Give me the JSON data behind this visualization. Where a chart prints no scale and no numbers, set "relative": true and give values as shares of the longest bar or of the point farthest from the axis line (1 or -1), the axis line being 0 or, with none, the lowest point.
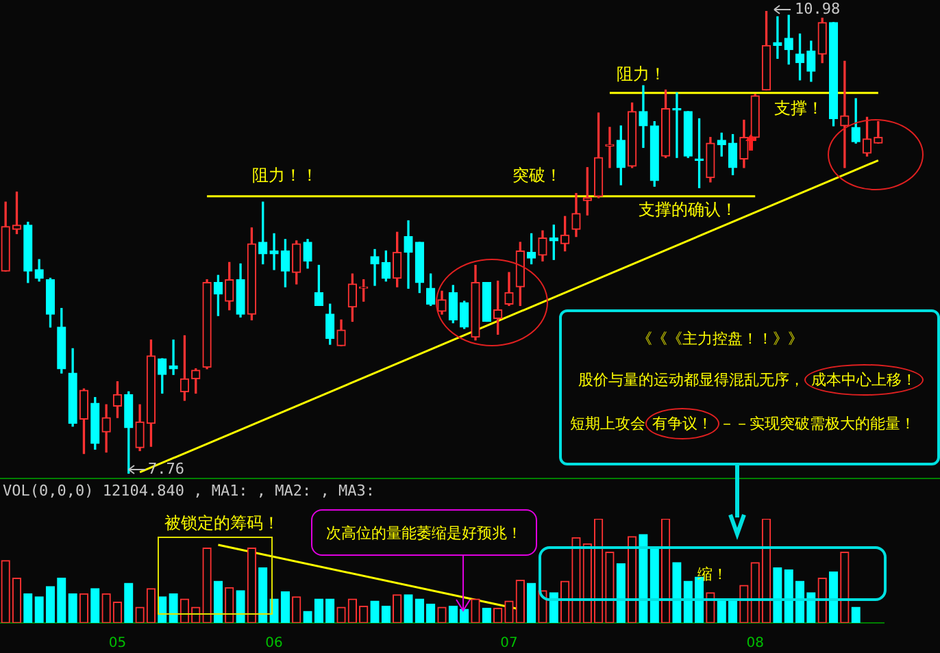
{
  "chart_data": [
    {
      "type": "candlestick",
      "tick_labels": false,
      "categories": [
        null,
        null,
        null,
        null,
        null,
        null,
        null,
        null,
        null,
        null,
        "05",
        null,
        null,
        null,
        null,
        null,
        null,
        null,
        null,
        null,
        null,
        null,
        null,
        null,
        "06",
        null,
        null,
        null,
        null,
        null,
        null,
        null,
        null,
        null,
        null,
        null,
        null,
        null,
        null,
        null,
        null,
        null,
        null,
        null,
        null,
        "07",
        null,
        null,
        null,
        null,
        null,
        null,
        null,
        null,
        null,
        null,
        null,
        null,
        null,
        null,
        null,
        null,
        null,
        null,
        null,
        null,
        null,
        "08",
        null,
        null,
        null,
        null,
        null,
        null,
        null,
        null,
        null,
        null,
        null
      ],
      "ohlc": [
        [
          9.17,
          9.65,
          9.17,
          9.48
        ],
        [
          9.46,
          9.72,
          9.43,
          9.49
        ],
        [
          9.49,
          9.51,
          9.09,
          9.17
        ],
        [
          9.18,
          9.25,
          9.1,
          9.12
        ],
        [
          9.11,
          9.12,
          8.78,
          8.87
        ],
        [
          8.78,
          8.91,
          8.46,
          8.49
        ],
        [
          8.46,
          8.63,
          8.09,
          8.11
        ],
        [
          8.14,
          8.35,
          7.9,
          8.34
        ],
        [
          8.25,
          8.29,
          7.93,
          7.97
        ],
        [
          8.05,
          8.24,
          7.91,
          8.15
        ],
        [
          8.23,
          8.4,
          8.15,
          8.31
        ],
        [
          8.31,
          8.33,
          7.76,
          8.08
        ],
        [
          7.94,
          8.24,
          7.92,
          8.12
        ],
        [
          8.11,
          8.69,
          7.95,
          8.58
        ],
        [
          8.56,
          8.56,
          8.32,
          8.45
        ],
        [
          8.51,
          8.69,
          8.45,
          8.49
        ],
        [
          8.33,
          8.72,
          8.27,
          8.42
        ],
        [
          8.42,
          8.49,
          8.32,
          8.48
        ],
        [
          8.5,
          9.11,
          8.49,
          9.09
        ],
        [
          9.09,
          9.14,
          8.86,
          9.01
        ],
        [
          8.96,
          9.23,
          8.9,
          9.11
        ],
        [
          9.11,
          9.22,
          8.85,
          8.87
        ],
        [
          8.87,
          9.47,
          8.83,
          9.36
        ],
        [
          9.37,
          9.65,
          9.22,
          9.29
        ],
        [
          9.31,
          9.43,
          9.18,
          9.29
        ],
        [
          9.31,
          9.39,
          9.06,
          9.17
        ],
        [
          9.16,
          9.38,
          9.08,
          9.36
        ],
        [
          9.37,
          9.39,
          9.19,
          9.24
        ],
        [
          9.02,
          9.21,
          8.93,
          8.93
        ],
        [
          8.87,
          8.94,
          8.66,
          8.7
        ],
        [
          8.65,
          8.83,
          8.65,
          8.76
        ],
        [
          8.92,
          9.15,
          8.82,
          9.08
        ],
        [
          9.05,
          9.11,
          8.96,
          9.06
        ],
        [
          9.27,
          9.32,
          9.07,
          9.22
        ],
        [
          9.23,
          9.31,
          9.1,
          9.12
        ],
        [
          9.12,
          9.44,
          9.06,
          9.3
        ],
        [
          9.41,
          9.52,
          9.05,
          9.3
        ],
        [
          9.37,
          9.37,
          9.02,
          9.09
        ],
        [
          9.05,
          9.15,
          8.93,
          8.94
        ],
        [
          8.89,
          9.03,
          8.87,
          8.97
        ],
        [
          9.02,
          9.07,
          8.81,
          8.83
        ],
        [
          8.95,
          8.96,
          8.77,
          8.78
        ],
        [
          8.71,
          9.21,
          8.69,
          9.09
        ],
        [
          9.09,
          9.09,
          8.82,
          8.82
        ],
        [
          8.84,
          9.1,
          8.73,
          8.9
        ],
        [
          8.94,
          9.16,
          8.93,
          9.02
        ],
        [
          9.06,
          9.37,
          8.93,
          9.31
        ],
        [
          9.3,
          9.43,
          9.22,
          9.26
        ],
        [
          9.28,
          9.45,
          9.24,
          9.4
        ],
        [
          9.4,
          9.49,
          9.25,
          9.38
        ],
        [
          9.36,
          9.55,
          9.31,
          9.42
        ],
        [
          9.46,
          9.71,
          9.41,
          9.57
        ],
        [
          9.66,
          9.89,
          9.56,
          9.68
        ],
        [
          9.69,
          10.27,
          9.68,
          9.96
        ],
        [
          10.04,
          10.17,
          9.89,
          10.05
        ],
        [
          10.08,
          10.18,
          9.77,
          9.89
        ],
        [
          9.9,
          10.34,
          9.89,
          10.28
        ],
        [
          10.28,
          10.46,
          10.03,
          10.18
        ],
        [
          10.18,
          10.21,
          9.76,
          9.8
        ],
        [
          9.97,
          10.43,
          9.96,
          10.3
        ],
        [
          10.3,
          10.41,
          9.96,
          10.29
        ],
        [
          10.28,
          10.28,
          9.96,
          9.97
        ],
        [
          9.95,
          10.23,
          9.75,
          9.94
        ],
        [
          9.82,
          10.1,
          9.79,
          10.06
        ],
        [
          10.08,
          10.13,
          9.97,
          10.05
        ],
        [
          10.06,
          10.12,
          9.84,
          9.89
        ],
        [
          9.95,
          10.22,
          9.89,
          10.1
        ],
        [
          10.1,
          10.4,
          10.08,
          10.39
        ],
        [
          10.43,
          10.98,
          10.43,
          10.74
        ],
        [
          10.76,
          10.94,
          10.65,
          10.74
        ],
        [
          10.79,
          10.95,
          10.61,
          10.71
        ],
        [
          10.68,
          10.82,
          10.5,
          10.62
        ],
        [
          10.7,
          10.77,
          10.49,
          10.56
        ],
        [
          10.68,
          10.93,
          10.62,
          10.9
        ],
        [
          10.9,
          10.9,
          10.18,
          10.23
        ],
        [
          10.18,
          10.63,
          9.89,
          10.25
        ],
        [
          10.17,
          10.37,
          10.06,
          10.07
        ],
        [
          9.99,
          10.24,
          9.97,
          10.09
        ],
        [
          10.06,
          10.21,
          10.06,
          10.1
        ]
      ],
      "series": [
        {
          "type": "line",
          "color": "#ffff00",
          "values": [
            null,
            null,
            null,
            null,
            null,
            null,
            null,
            null,
            null,
            null,
            null,
            null,
            7.77,
            null,
            null,
            null,
            null,
            null,
            null,
            null,
            null,
            null,
            null,
            null,
            null,
            null,
            null,
            null,
            null,
            null,
            null,
            null,
            null,
            null,
            null,
            null,
            null,
            null,
            null,
            null,
            null,
            null,
            null,
            null,
            null,
            null,
            null,
            null,
            null,
            null,
            null,
            null,
            null,
            null,
            null,
            null,
            null,
            null,
            null,
            null,
            null,
            null,
            null,
            null,
            null,
            null,
            null,
            null,
            null,
            null,
            null,
            null,
            null,
            null,
            null,
            null,
            null,
            null,
            9.94
          ]
        },
        {
          "type": "line",
          "color": "#ffff00",
          "values": [
            null,
            null,
            null,
            null,
            null,
            null,
            null,
            null,
            null,
            null,
            null,
            null,
            null,
            null,
            null,
            null,
            null,
            null,
            9.69,
            null,
            null,
            null,
            null,
            null,
            null,
            null,
            null,
            null,
            null,
            null,
            null,
            null,
            null,
            null,
            null,
            null,
            null,
            null,
            null,
            null,
            null,
            null,
            null,
            null,
            null,
            null,
            null,
            null,
            null,
            null,
            null,
            null,
            null,
            null,
            null,
            null,
            null,
            null,
            null,
            null,
            null,
            null,
            null,
            null,
            null,
            null,
            null,
            9.69,
            null,
            null,
            null,
            null,
            null,
            null,
            null,
            null,
            null,
            null,
            null
          ]
        },
        {
          "type": "line",
          "color": "#ffff00",
          "values": [
            null,
            null,
            null,
            null,
            null,
            null,
            null,
            null,
            null,
            null,
            null,
            null,
            null,
            null,
            null,
            null,
            null,
            null,
            null,
            null,
            null,
            null,
            null,
            null,
            null,
            null,
            null,
            null,
            null,
            null,
            null,
            null,
            null,
            null,
            null,
            null,
            null,
            null,
            null,
            null,
            null,
            null,
            null,
            null,
            null,
            null,
            null,
            null,
            null,
            null,
            null,
            null,
            null,
            null,
            10.41,
            null,
            null,
            null,
            null,
            null,
            null,
            null,
            null,
            null,
            null,
            null,
            null,
            null,
            null,
            null,
            null,
            null,
            null,
            null,
            null,
            null,
            null,
            null,
            10.41
          ]
        }
      ],
      "annotations": [
        "10.98",
        "7.76",
        "阻力！！",
        "突破！",
        "阻力！",
        "支撑！",
        "支撑的确认！",
        "《《《主力控盘！！》》",
        "股价与量的运动都显得混乱无序，",
        "成本中心上移！",
        "短期上攻会",
        "有争议！",
        "－－实现突破需极大的能量！"
      ]
    },
    {
      "type": "bar",
      "relative": true,
      "categories": [
        null,
        null,
        null,
        null,
        null,
        null,
        null,
        null,
        null,
        null,
        "05",
        null,
        null,
        null,
        null,
        null,
        null,
        null,
        null,
        null,
        null,
        null,
        null,
        null,
        "06",
        null,
        null,
        null,
        null,
        null,
        null,
        null,
        null,
        null,
        null,
        null,
        null,
        null,
        null,
        null,
        null,
        null,
        null,
        null,
        null,
        "07",
        null,
        null,
        null,
        null,
        null,
        null,
        null,
        null,
        null,
        null,
        null,
        null,
        null,
        null,
        null,
        null,
        null,
        null,
        null,
        null,
        null,
        "08",
        null,
        null,
        null,
        null,
        null,
        null,
        null,
        null,
        null,
        null,
        null
      ],
      "series": [
        {
          "type": "bar",
          "values": [
            0.6,
            0.43,
            0.28,
            0.25,
            0.35,
            0.43,
            0.28,
            0.28,
            0.33,
            0.28,
            0.2,
            0.38,
            0.15,
            0.33,
            0.25,
            0.28,
            0.23,
            0.15,
            0.72,
            0.4,
            0.34,
            0.31,
            0.72,
            0.53,
            0.23,
            0.3,
            0.25,
            0.11,
            0.23,
            0.23,
            0.15,
            0.23,
            0.16,
            0.21,
            0.16,
            0.27,
            0.27,
            0.23,
            0.18,
            0.15,
            0.16,
            0.13,
            0.23,
            0.14,
            0.14,
            0.21,
            0.41,
            0.38,
            0.31,
            0.29,
            0.4,
            0.82,
            0.76,
            1,
            0.68,
            0.57,
            0.83,
            0.85,
            0.73,
            1,
            0.58,
            0.4,
            0.44,
            0.29,
            0.23,
            0.23,
            0.36,
            0.58,
            1,
            0.53,
            0.51,
            0.4,
            0.29,
            0.43,
            0.49,
            0.68,
            0.15,
            null,
            null
          ],
          "colors": [
            "#ff3232",
            "#ff3232",
            "#00ffff",
            "#00ffff",
            "#00ffff",
            "#00ffff",
            "#00ffff",
            "#ff3232",
            "#00ffff",
            "#ff3232",
            "#ff3232",
            "#00ffff",
            "#ff3232",
            "#ff3232",
            "#00ffff",
            "#00ffff",
            "#ff3232",
            "#ff3232",
            "#ff3232",
            "#00ffff",
            "#ff3232",
            "#00ffff",
            "#ff3232",
            "#00ffff",
            "#00ffff",
            "#00ffff",
            "#ff3232",
            "#00ffff",
            "#00ffff",
            "#00ffff",
            "#ff3232",
            "#ff3232",
            "#ff3232",
            "#00ffff",
            "#00ffff",
            "#ff3232",
            "#00ffff",
            "#00ffff",
            "#00ffff",
            "#ff3232",
            "#00ffff",
            "#00ffff",
            "#ff3232",
            "#00ffff",
            "#ff3232",
            "#ff3232",
            "#ff3232",
            "#00ffff",
            "#ff3232",
            "#00ffff",
            "#ff3232",
            "#ff3232",
            "#ff3232",
            "#ff3232",
            "#ff3232",
            "#00ffff",
            "#ff3232",
            "#00ffff",
            "#00ffff",
            "#ff3232",
            "#00ffff",
            "#00ffff",
            "#00ffff",
            "#ff3232",
            "#00ffff",
            "#00ffff",
            "#ff3232",
            "#ff3232",
            "#ff3232",
            "#00ffff",
            "#00ffff",
            "#00ffff",
            "#00ffff",
            "#ff3232",
            "#00ffff",
            "#ff3232",
            "#00ffff",
            "#ff3232",
            "#ff3232"
          ]
        },
        {
          "type": "line",
          "color": "#ffff00",
          "values": [
            null,
            null,
            null,
            null,
            null,
            null,
            null,
            null,
            null,
            null,
            null,
            null,
            null,
            null,
            null,
            null,
            null,
            null,
            null,
            0.75,
            null,
            null,
            null,
            null,
            null,
            null,
            null,
            null,
            null,
            null,
            null,
            null,
            null,
            null,
            null,
            null,
            null,
            null,
            null,
            null,
            null,
            null,
            null,
            null,
            null,
            null,
            0.13,
            null,
            null,
            null,
            null,
            null,
            null,
            null,
            null,
            null,
            null,
            null,
            null,
            null,
            null,
            null,
            null,
            null,
            null,
            null,
            null,
            null,
            null,
            null,
            null,
            null,
            null,
            null,
            null,
            null,
            null,
            null,
            null
          ]
        }
      ],
      "annotations": [
        "VOL(0,0,0) 12104.840 , MA1: , MA2: , MA3:",
        "被锁定的筹码！",
        "次高位的量能萎缩是好预兆！",
        "缩！"
      ]
    }
  ]
}
